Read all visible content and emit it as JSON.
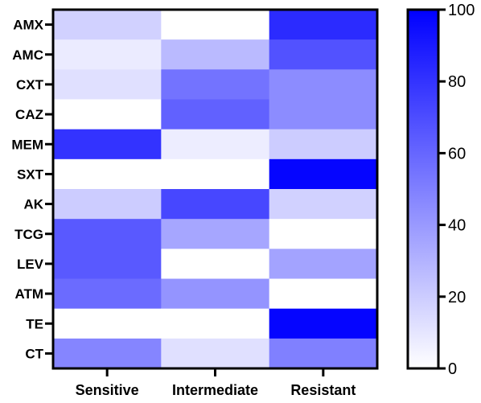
{
  "chart_data": {
    "type": "heatmap",
    "rows": [
      "AMX",
      "AMC",
      "CXT",
      "CAZ",
      "MEM",
      "SXT",
      "AK",
      "TCG",
      "LEV",
      "ATM",
      "TE",
      "CT"
    ],
    "columns": [
      "Sensitive",
      "Intermediate",
      "Resistant"
    ],
    "values": [
      [
        18,
        0,
        83
      ],
      [
        8,
        27,
        68
      ],
      [
        12,
        55,
        45
      ],
      [
        0,
        62,
        45
      ],
      [
        80,
        7,
        20
      ],
      [
        0,
        0,
        98
      ],
      [
        20,
        72,
        18
      ],
      [
        65,
        35,
        0
      ],
      [
        65,
        0,
        36
      ],
      [
        58,
        42,
        0
      ],
      [
        0,
        0,
        98
      ],
      [
        48,
        12,
        50
      ]
    ],
    "colorbar": {
      "min": 0,
      "max": 100,
      "ticks": [
        "0",
        "20",
        "40",
        "60",
        "80",
        "100"
      ],
      "tick_values": [
        0,
        20,
        40,
        60,
        80,
        100
      ],
      "color_low": "#ffffff",
      "color_high": "#0000ff"
    },
    "title": "",
    "xlabel": "",
    "ylabel": ""
  }
}
